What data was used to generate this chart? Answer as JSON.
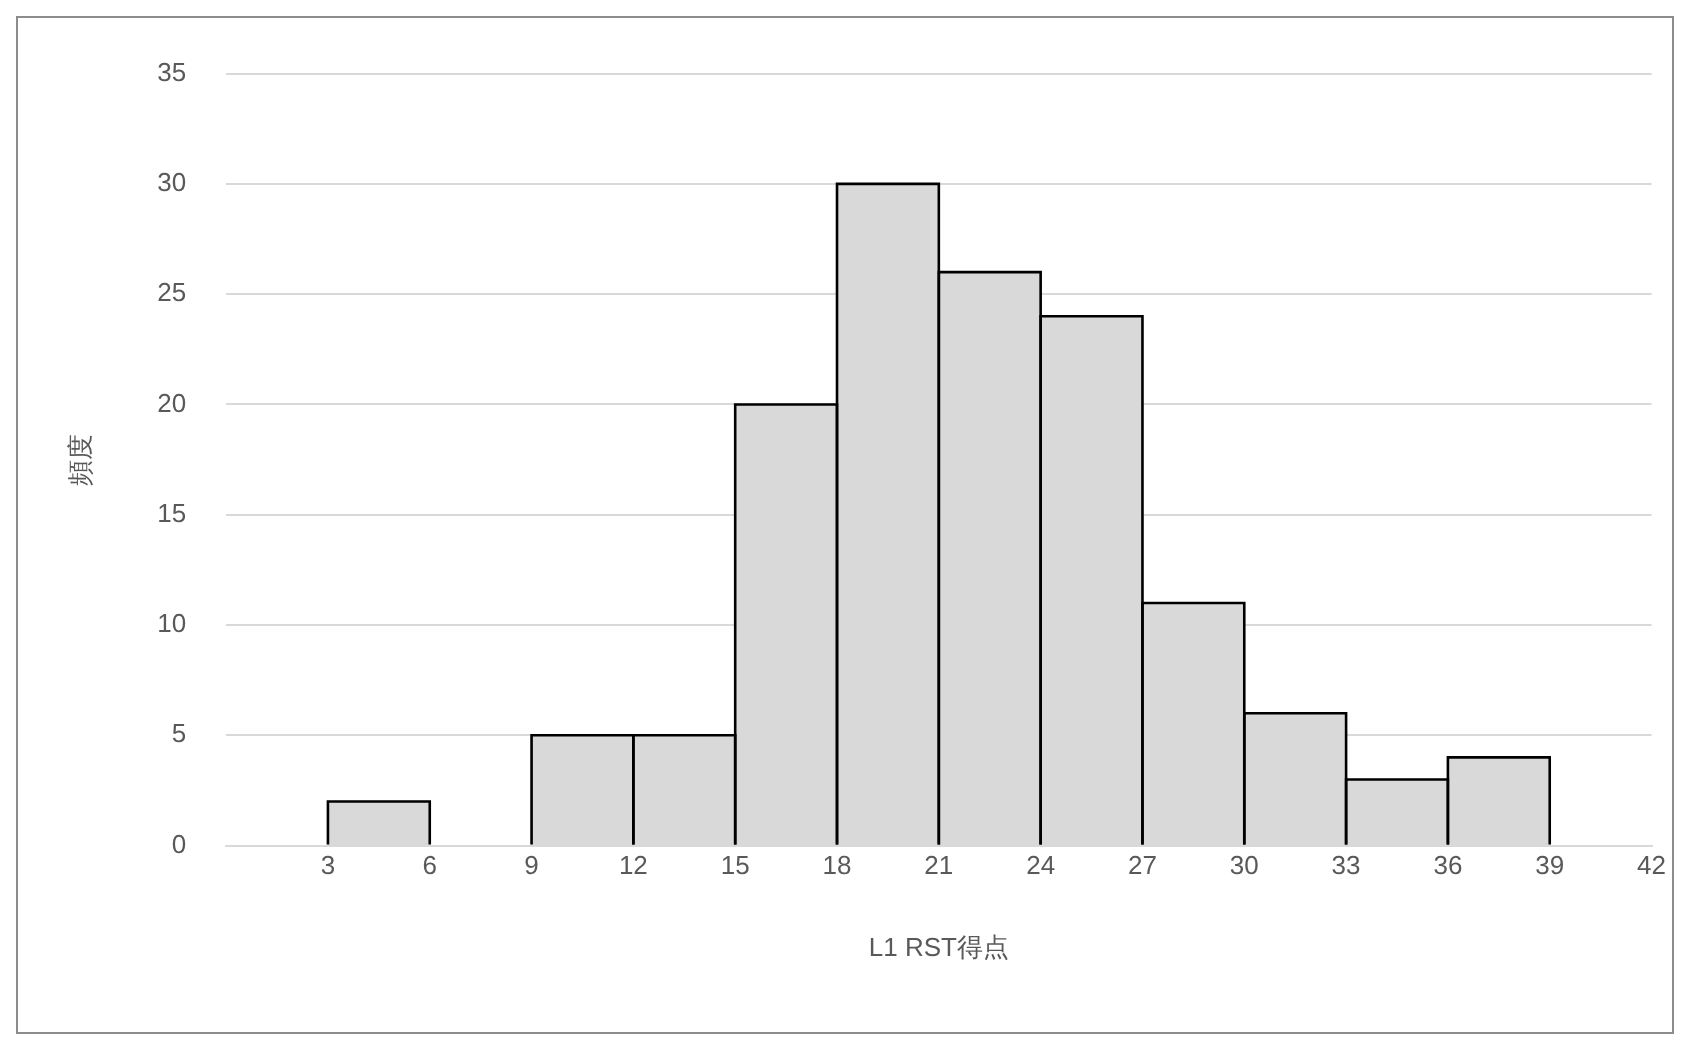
{
  "chart_data": {
    "type": "histogram",
    "xlabel": "L1 RST得点",
    "ylabel": "頻度",
    "bins": [
      3,
      6,
      9,
      12,
      15,
      18,
      21,
      24,
      27,
      30,
      33,
      36,
      39
    ],
    "values": [
      2,
      0,
      5,
      5,
      20,
      30,
      26,
      24,
      11,
      6,
      3,
      4
    ],
    "color": "#d9d9d9",
    "xlim": [
      0,
      42
    ],
    "xticks": [
      3,
      6,
      9,
      12,
      15,
      18,
      21,
      24,
      27,
      30,
      33,
      36,
      39,
      42
    ],
    "ylim": [
      0,
      35
    ],
    "yticks": [
      0,
      5,
      10,
      15,
      20,
      25,
      30,
      35
    ],
    "grid": "y",
    "legend": false
  }
}
